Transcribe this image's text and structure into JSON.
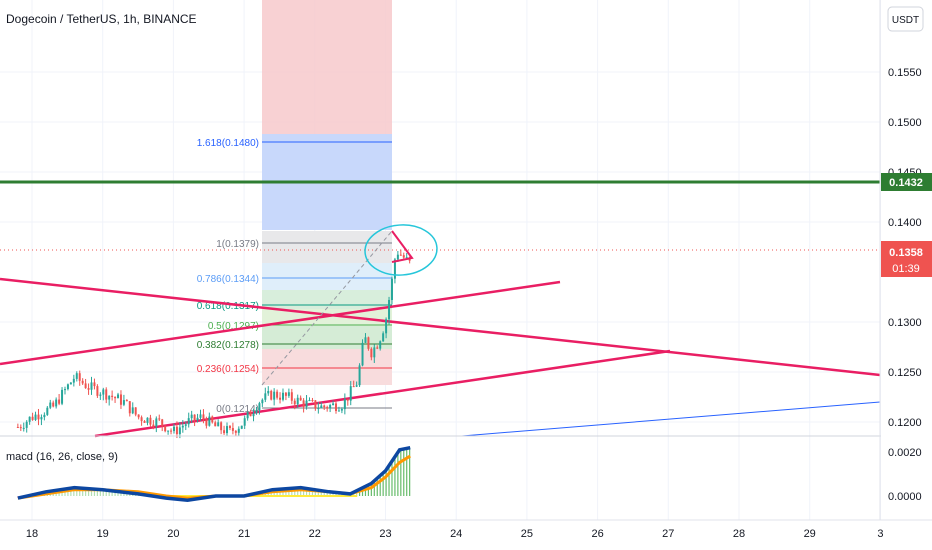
{
  "header": {
    "title": "Dogecoin / TetherUS, 1h, BINANCE",
    "currency_button": "USDT"
  },
  "price_axis": {
    "ticks": [
      "0.1550",
      "0.1500",
      "0.1450",
      "0.1400",
      "0.1300",
      "0.1250",
      "0.1200"
    ]
  },
  "horizontal_line_label": "0.1432",
  "current_price": {
    "price": "0.1358",
    "countdown": "01:39"
  },
  "fib_levels": [
    {
      "label": "1.618(0.1480)",
      "color": "#2962ff"
    },
    {
      "label": "1(0.1379)",
      "color": "#787b86"
    },
    {
      "label": "0.786(0.1344)",
      "color": "#5b9cf6"
    },
    {
      "label": "0.618(0.1317)",
      "color": "#089981"
    },
    {
      "label": "0.5(0.1297)",
      "color": "#4caf50"
    },
    {
      "label": "0.382(0.1278)",
      "color": "#2e7d32"
    },
    {
      "label": "0.236(0.1254)",
      "color": "#f23645"
    },
    {
      "label": "0(0.1214)",
      "color": "#787b86"
    }
  ],
  "macd": {
    "label": "macd (16, 26, close, 9)",
    "ticks": [
      "0.0020",
      "0.0000"
    ]
  },
  "time_axis": {
    "ticks": [
      "18",
      "19",
      "20",
      "21",
      "22",
      "23",
      "24",
      "25",
      "26",
      "27",
      "28",
      "29",
      "3"
    ]
  },
  "colors": {
    "up": "#26a69a",
    "down": "#ef5350",
    "trendline": "#e91e63",
    "horizontal_line": "#2e7d32",
    "macd_line": "#0d47a1",
    "signal_line": "#ff9800",
    "blue_line": "#2962ff"
  },
  "chart_data": {
    "type": "candlestick",
    "symbol": "Dogecoin / TetherUS",
    "interval": "1h",
    "exchange": "BINANCE",
    "x_range": [
      "18",
      "3"
    ],
    "y_range": [
      0.1175,
      0.1585
    ],
    "current_price": 0.1358,
    "horizontal_line": 0.1432,
    "fibonacci_retracement": [
      1.618,
      1,
      0.786,
      0.618,
      0.5,
      0.382,
      0.236,
      0
    ],
    "fibonacci_prices": [
      0.148,
      0.1379,
      0.1344,
      0.1317,
      0.1297,
      0.1278,
      0.1254,
      0.1214
    ],
    "price_path": [
      [
        17.8,
        0.1195
      ],
      [
        18.0,
        0.1205
      ],
      [
        18.3,
        0.1215
      ],
      [
        18.5,
        0.1235
      ],
      [
        18.6,
        0.1245
      ],
      [
        18.8,
        0.1235
      ],
      [
        19.0,
        0.123
      ],
      [
        19.3,
        0.122
      ],
      [
        19.5,
        0.1205
      ],
      [
        19.8,
        0.12
      ],
      [
        20.0,
        0.119
      ],
      [
        20.2,
        0.12
      ],
      [
        20.4,
        0.1205
      ],
      [
        20.6,
        0.1195
      ],
      [
        20.8,
        0.119
      ],
      [
        21.0,
        0.12
      ],
      [
        21.2,
        0.122
      ],
      [
        21.4,
        0.1228
      ],
      [
        21.6,
        0.1225
      ],
      [
        21.9,
        0.1218
      ],
      [
        22.1,
        0.1215
      ],
      [
        22.4,
        0.1218
      ],
      [
        22.6,
        0.124
      ],
      [
        22.7,
        0.1285
      ],
      [
        22.8,
        0.127
      ],
      [
        22.9,
        0.128
      ],
      [
        23.0,
        0.13
      ],
      [
        23.1,
        0.1345
      ],
      [
        23.15,
        0.1372
      ],
      [
        23.25,
        0.1365
      ],
      [
        23.35,
        0.1358
      ]
    ],
    "macd_y_range": [
      -0.0006,
      0.0026
    ],
    "macd": [
      [
        17.8,
        -0.0001
      ],
      [
        18.2,
        0.0002
      ],
      [
        18.6,
        0.0004
      ],
      [
        19.0,
        0.0003
      ],
      [
        19.5,
        0.0001
      ],
      [
        19.9,
        -0.0001
      ],
      [
        20.2,
        -0.0002
      ],
      [
        20.6,
        0.0
      ],
      [
        21.0,
        0.0
      ],
      [
        21.4,
        0.0003
      ],
      [
        21.8,
        0.0004
      ],
      [
        22.2,
        0.0002
      ],
      [
        22.5,
        0.0001
      ],
      [
        22.8,
        0.0006
      ],
      [
        23.0,
        0.0012
      ],
      [
        23.2,
        0.0022
      ],
      [
        23.35,
        0.0023
      ]
    ],
    "signal": [
      [
        17.8,
        -0.0001
      ],
      [
        18.2,
        0.0001
      ],
      [
        18.6,
        0.0003
      ],
      [
        19.0,
        0.0003
      ],
      [
        19.5,
        0.0002
      ],
      [
        19.9,
        0.0
      ],
      [
        20.2,
        -0.0001
      ],
      [
        20.6,
        0.0
      ],
      [
        21.0,
        0.0
      ],
      [
        21.4,
        0.0002
      ],
      [
        21.8,
        0.0003
      ],
      [
        22.2,
        0.0002
      ],
      [
        22.5,
        0.0001
      ],
      [
        22.8,
        0.0004
      ],
      [
        23.0,
        0.0009
      ],
      [
        23.2,
        0.0016
      ],
      [
        23.35,
        0.0019
      ]
    ]
  }
}
